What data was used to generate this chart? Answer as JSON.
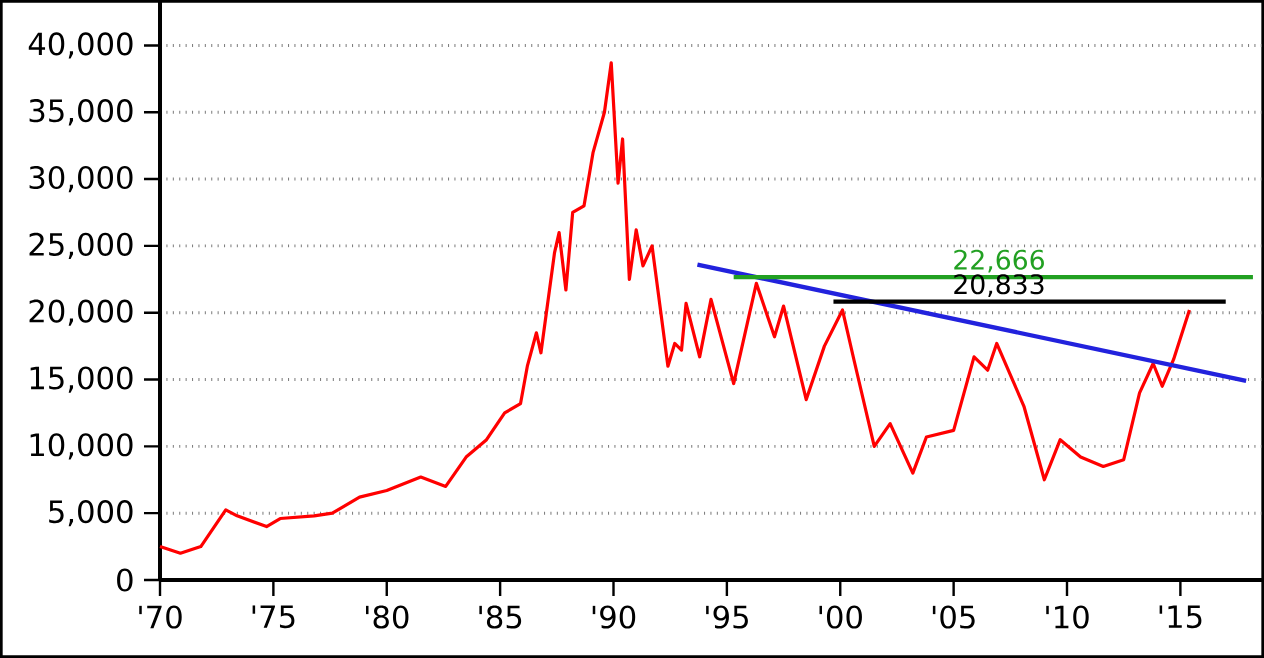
{
  "chart_data": {
    "type": "line",
    "xlim": [
      1970,
      2018.6
    ],
    "ylim": [
      0,
      43400
    ],
    "xticks": [
      {
        "value": 1970,
        "label": "'70"
      },
      {
        "value": 1975,
        "label": "'75"
      },
      {
        "value": 1980,
        "label": "'80"
      },
      {
        "value": 1985,
        "label": "'85"
      },
      {
        "value": 1990,
        "label": "'90"
      },
      {
        "value": 1995,
        "label": "'95"
      },
      {
        "value": 2000,
        "label": "'00"
      },
      {
        "value": 2005,
        "label": "'05"
      },
      {
        "value": 2010,
        "label": "'10"
      },
      {
        "value": 2015,
        "label": "'15"
      }
    ],
    "yticks": [
      0,
      {
        "value": 5000,
        "label": "5,000"
      },
      {
        "value": 10000,
        "label": "10,000"
      },
      {
        "value": 15000,
        "label": "15,000"
      },
      {
        "value": 20000,
        "label": "20,000"
      },
      {
        "value": 25000,
        "label": "25,000"
      },
      {
        "value": 30000,
        "label": "30,000"
      },
      {
        "value": 35000,
        "label": "35,000"
      },
      {
        "value": 40000,
        "label": "40,000"
      }
    ],
    "grid": "y",
    "marker": "none",
    "line_style": "solid",
    "series": [
      {
        "color": "#ff0000",
        "x": [
          1970,
          1970.9,
          1971.8,
          1972.9,
          1973.4,
          1974.7,
          1975.3,
          1976.8,
          1977.6,
          1978.8,
          1980,
          1981.5,
          1982.6,
          1983.5,
          1984.4,
          1985.2,
          1985.9,
          1986.2,
          1986.6,
          1986.8,
          1987.4,
          1987.6,
          1987.9,
          1988.2,
          1988.7,
          1989.1,
          1989.6,
          1989.9,
          1990.2,
          1990.4,
          1990.7,
          1991.0,
          1991.3,
          1991.7,
          1992.4,
          1992.7,
          1993.0,
          1993.2,
          1993.8,
          1994.3,
          1995.3,
          1995.9,
          1996.3,
          1997.1,
          1997.5,
          1998.5,
          1999.3,
          2000.1,
          2000.6,
          2001.5,
          2002.2,
          2003.2,
          2003.8,
          2005.0,
          2005.9,
          2006.5,
          2006.9,
          2008.1,
          2009.0,
          2009.7,
          2010.6,
          2011.6,
          2012.5,
          2013.2,
          2013.8,
          2014.2,
          2014.7,
          2015.4
        ],
        "values": [
          2500,
          2000,
          2500,
          5250,
          4800,
          4000,
          4600,
          4800,
          5000,
          6200,
          6700,
          7700,
          7000,
          9200,
          10500,
          12500,
          13200,
          16000,
          18500,
          17000,
          24500,
          26000,
          21700,
          27500,
          28000,
          32000,
          35000,
          38700,
          29700,
          33000,
          22500,
          26200,
          23500,
          25000,
          16000,
          17700,
          17200,
          20700,
          16700,
          21000,
          14700,
          19200,
          22200,
          18200,
          20500,
          13500,
          17500,
          20200,
          16500,
          10000,
          11700,
          8000,
          10700,
          11200,
          16700,
          15700,
          17700,
          13000,
          7500,
          10500,
          9200,
          8500,
          9000,
          14000,
          16200,
          14500,
          16500,
          20200
        ]
      },
      {
        "color": "#2222dd",
        "x": [
          1993.7,
          2017.9
        ],
        "values": [
          23600,
          14900
        ]
      },
      {
        "color": "#22a022",
        "x": [
          1995.3,
          2018.2
        ],
        "values": [
          22666,
          22666
        ]
      },
      {
        "color": "#000000",
        "x": [
          1999.7,
          2017.0
        ],
        "values": [
          20833,
          20833
        ]
      }
    ],
    "annotations": [
      {
        "text": "22,666",
        "x": 2007,
        "y": 22666
      },
      {
        "text": "20,833",
        "x": 2007,
        "y": 20833
      }
    ]
  }
}
